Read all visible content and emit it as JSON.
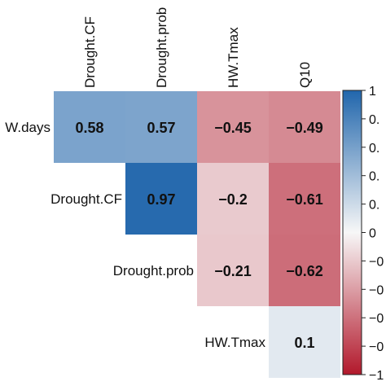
{
  "chart_data": {
    "type": "heatmap",
    "columns": [
      "Drought.CF",
      "Drought.prob",
      "HW.Tmax",
      "Q10"
    ],
    "rows": [
      "W.days",
      "Drought.CF",
      "Drought.prob",
      "HW.Tmax"
    ],
    "cells": [
      [
        0.58,
        0.57,
        -0.45,
        -0.49
      ],
      [
        null,
        0.97,
        -0.2,
        -0.61
      ],
      [
        null,
        null,
        -0.21,
        -0.62
      ],
      [
        null,
        null,
        null,
        0.1
      ]
    ],
    "cell_labels": [
      [
        "0.58",
        "0.57",
        "−0.45",
        "−0.49"
      ],
      [
        null,
        "0.97",
        "−0.2",
        "−0.61"
      ],
      [
        null,
        null,
        "−0.21",
        "−0.62"
      ],
      [
        null,
        null,
        null,
        "0.1"
      ]
    ],
    "colorbar": {
      "range": [
        -1,
        1
      ],
      "tick_labels": [
        "1",
        "0.",
        "0.",
        "0.",
        "0.",
        "0",
        "−0",
        "−0",
        "−0",
        "−0",
        "−1"
      ],
      "colors": {
        "negative": "#b2182b",
        "zero": "#f7f7f7",
        "positive": "#2166ac"
      }
    }
  }
}
